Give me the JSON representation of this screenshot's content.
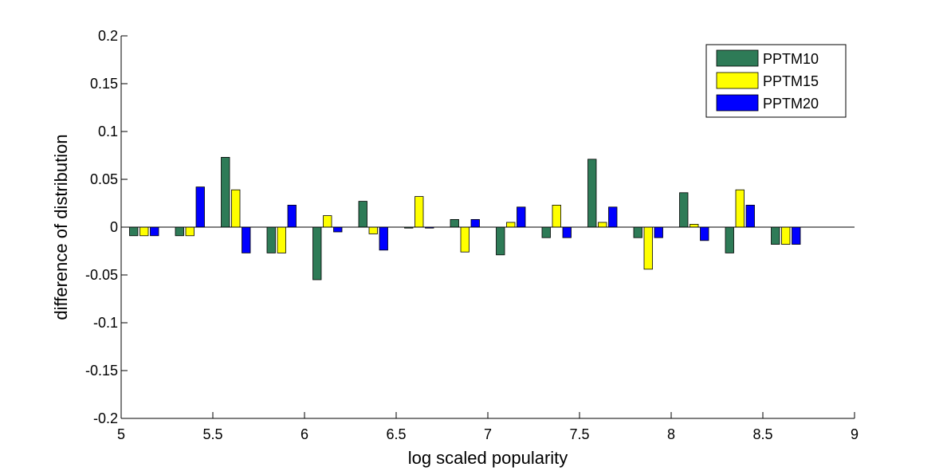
{
  "chart_data": {
    "type": "bar",
    "title": "",
    "xlabel": "log scaled popularity",
    "ylabel": "difference of distribution",
    "xlim": [
      5,
      9
    ],
    "ylim": [
      -0.2,
      0.2
    ],
    "xticks": [
      "5",
      "5.5",
      "6",
      "6.5",
      "7",
      "7.5",
      "8",
      "8.5",
      "9"
    ],
    "yticks": [
      "0.2",
      "0.15",
      "0.1",
      "0.05",
      "0",
      "-0.05",
      "-0.1",
      "-0.15",
      "-0.2"
    ],
    "x": [
      5.125,
      5.375,
      5.625,
      5.875,
      6.125,
      6.375,
      6.625,
      6.875,
      7.125,
      7.375,
      7.625,
      7.875,
      8.125,
      8.375,
      8.625
    ],
    "series": [
      {
        "name": "PPTM10",
        "color": "#2e7b57",
        "values": [
          -0.009,
          -0.009,
          0.073,
          -0.027,
          -0.055,
          0.027,
          -0.001,
          0.008,
          -0.029,
          -0.011,
          0.071,
          -0.011,
          0.036,
          -0.027,
          -0.018
        ]
      },
      {
        "name": "PPTM15",
        "color": "#ffff00",
        "values": [
          -0.009,
          -0.009,
          0.039,
          -0.027,
          0.012,
          -0.007,
          0.032,
          -0.026,
          0.005,
          0.023,
          0.005,
          -0.044,
          0.003,
          0.039,
          -0.018
        ]
      },
      {
        "name": "PPTM20",
        "color": "#0000ff",
        "values": [
          -0.009,
          0.042,
          -0.027,
          0.023,
          -0.005,
          -0.024,
          -0.001,
          0.008,
          0.021,
          -0.011,
          0.021,
          -0.011,
          -0.014,
          0.023,
          -0.018
        ]
      }
    ],
    "legend": "top-right",
    "grid": false
  }
}
